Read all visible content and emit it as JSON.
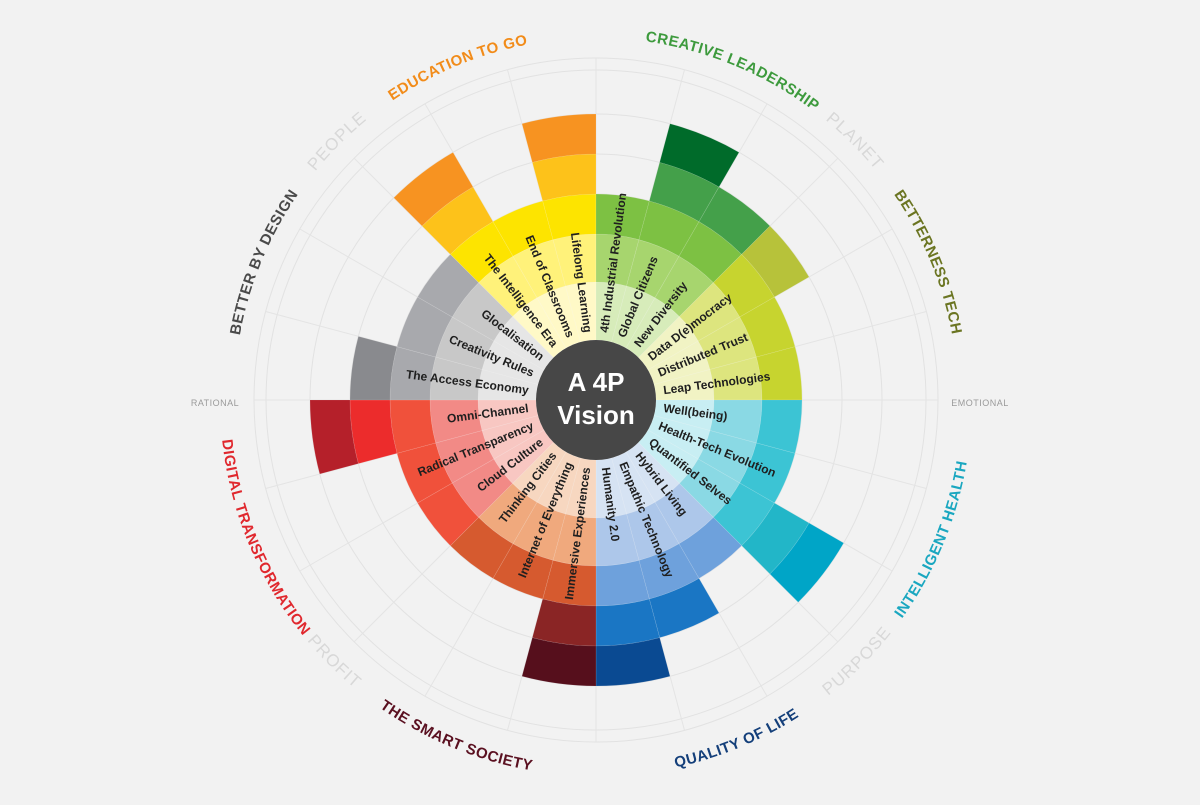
{
  "center": {
    "line1": "A 4P",
    "line2": "Vision",
    "fill": "#474747",
    "text_color": "#ffffff"
  },
  "axis_labels": {
    "left": "RATIONAL",
    "right": "EMOTIONAL"
  },
  "perspectives": [
    {
      "label": "PEOPLE",
      "color": "#d8d8d8"
    },
    {
      "label": "PLANET",
      "color": "#d8d8d8"
    },
    {
      "label": "PURPOSE",
      "color": "#d8d8d8"
    },
    {
      "label": "PROFIT",
      "color": "#d8d8d8"
    }
  ],
  "sectors": [
    {
      "label": "EDUCATION TO GO",
      "label_color": "#f28c1a",
      "ring_colors": [
        "#fff9c7",
        "#fff27a",
        "#fde400",
        "#fdc21a",
        "#f79321"
      ],
      "levels": [
        5,
        3,
        5
      ],
      "items": [
        "The Intelligence Era",
        "End of Classrooms",
        "Lifelong Learning"
      ]
    },
    {
      "label": "CREATIVE LEADERSHIP",
      "label_color": "#3d9a3d",
      "ring_colors": [
        "#d7ecba",
        "#a7d56e",
        "#7dc143",
        "#44a04a",
        "#006b2a"
      ],
      "levels": [
        3,
        5,
        4
      ],
      "items": [
        "4th Industrial Revolution",
        "Global Citizens",
        "New Diversity"
      ]
    },
    {
      "label": "BETTERNESS TECH",
      "label_color": "#6b7522",
      "ring_colors": [
        "#f1f3c4",
        "#dde57e",
        "#c7d42f",
        "#b7c23a",
        "#9aa33a"
      ],
      "levels": [
        4,
        3,
        3
      ],
      "items": [
        "Data D(e)mocracy",
        "Distributed Trust",
        "Leap Technologies"
      ]
    },
    {
      "label": "INTELLIGENT HEALTH",
      "label_color": "#1aa7c0",
      "ring_colors": [
        "#c8eef3",
        "#8ad9e4",
        "#3cc4d4",
        "#22b6c8",
        "#00a5c7"
      ],
      "levels": [
        3,
        3,
        5
      ],
      "items": [
        "Well(being)",
        "Health-Tech Evolution",
        "Quantified Selves"
      ]
    },
    {
      "label": "QUALITY OF LIFE",
      "label_color": "#143f7a",
      "ring_colors": [
        "#d6e3f3",
        "#adc7ea",
        "#6ea1dc",
        "#1a76c4",
        "#0a4a92"
      ],
      "levels": [
        3,
        4,
        5
      ],
      "items": [
        "Hybrid Living",
        "Empathic Technology",
        "Humanity 2.0"
      ]
    },
    {
      "label": "THE SMART SOCIETY",
      "label_color": "#5a1020",
      "ring_colors": [
        "#f7d7c0",
        "#f0a97d",
        "#d65a2f",
        "#8a2525",
        "#560f1c"
      ],
      "levels": [
        5,
        3,
        3
      ],
      "items": [
        "Immersive Experiences",
        "Internet of Everything",
        "Thinking Cities"
      ]
    },
    {
      "label": "DIGITAL TRANSFORMATION",
      "label_color": "#e0282e",
      "ring_colors": [
        "#f8c7c2",
        "#f28a86",
        "#f0513b",
        "#ec2c2c",
        "#b5202a"
      ],
      "levels": [
        3,
        3,
        5
      ],
      "items": [
        "Cloud Culture",
        "Radical Transparency",
        "Omni-Channel"
      ]
    },
    {
      "label": "BETTER BY DESIGN",
      "label_color": "#4a4a4a",
      "ring_colors": [
        "#e6e6e6",
        "#c8c8c8",
        "#a8a9ad",
        "#898a8e",
        "#6f7075"
      ],
      "levels": [
        4,
        3,
        3
      ],
      "items": [
        "The  Access Economy",
        "Creativity Rules",
        "Glocalisation"
      ]
    }
  ]
}
